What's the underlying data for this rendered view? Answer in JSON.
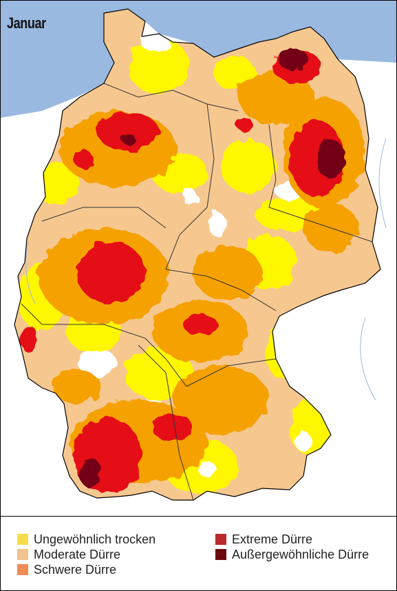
{
  "map": {
    "title": "Januar",
    "colors": {
      "sea": "#99b9e0",
      "land_outside": "#ffffff",
      "no_drought": "#ffffff",
      "unusual_dry": "#fff700",
      "moderate": "#f6c890",
      "severe": "#f5a100",
      "extreme": "#e51012",
      "exceptional": "#730016",
      "border": "#000000"
    }
  },
  "legend": {
    "items": [
      {
        "label": "Ungewöhnlich trocken",
        "color": "#f5dc4a"
      },
      {
        "label": "Moderate Dürre",
        "color": "#f1c38f"
      },
      {
        "label": "Schwere Dürre",
        "color": "#ee8c55"
      },
      {
        "label": "Extreme Dürre",
        "color": "#bb2a2d"
      },
      {
        "label": "Außergewöhnliche Dürre",
        "color": "#6c0a10"
      }
    ]
  }
}
